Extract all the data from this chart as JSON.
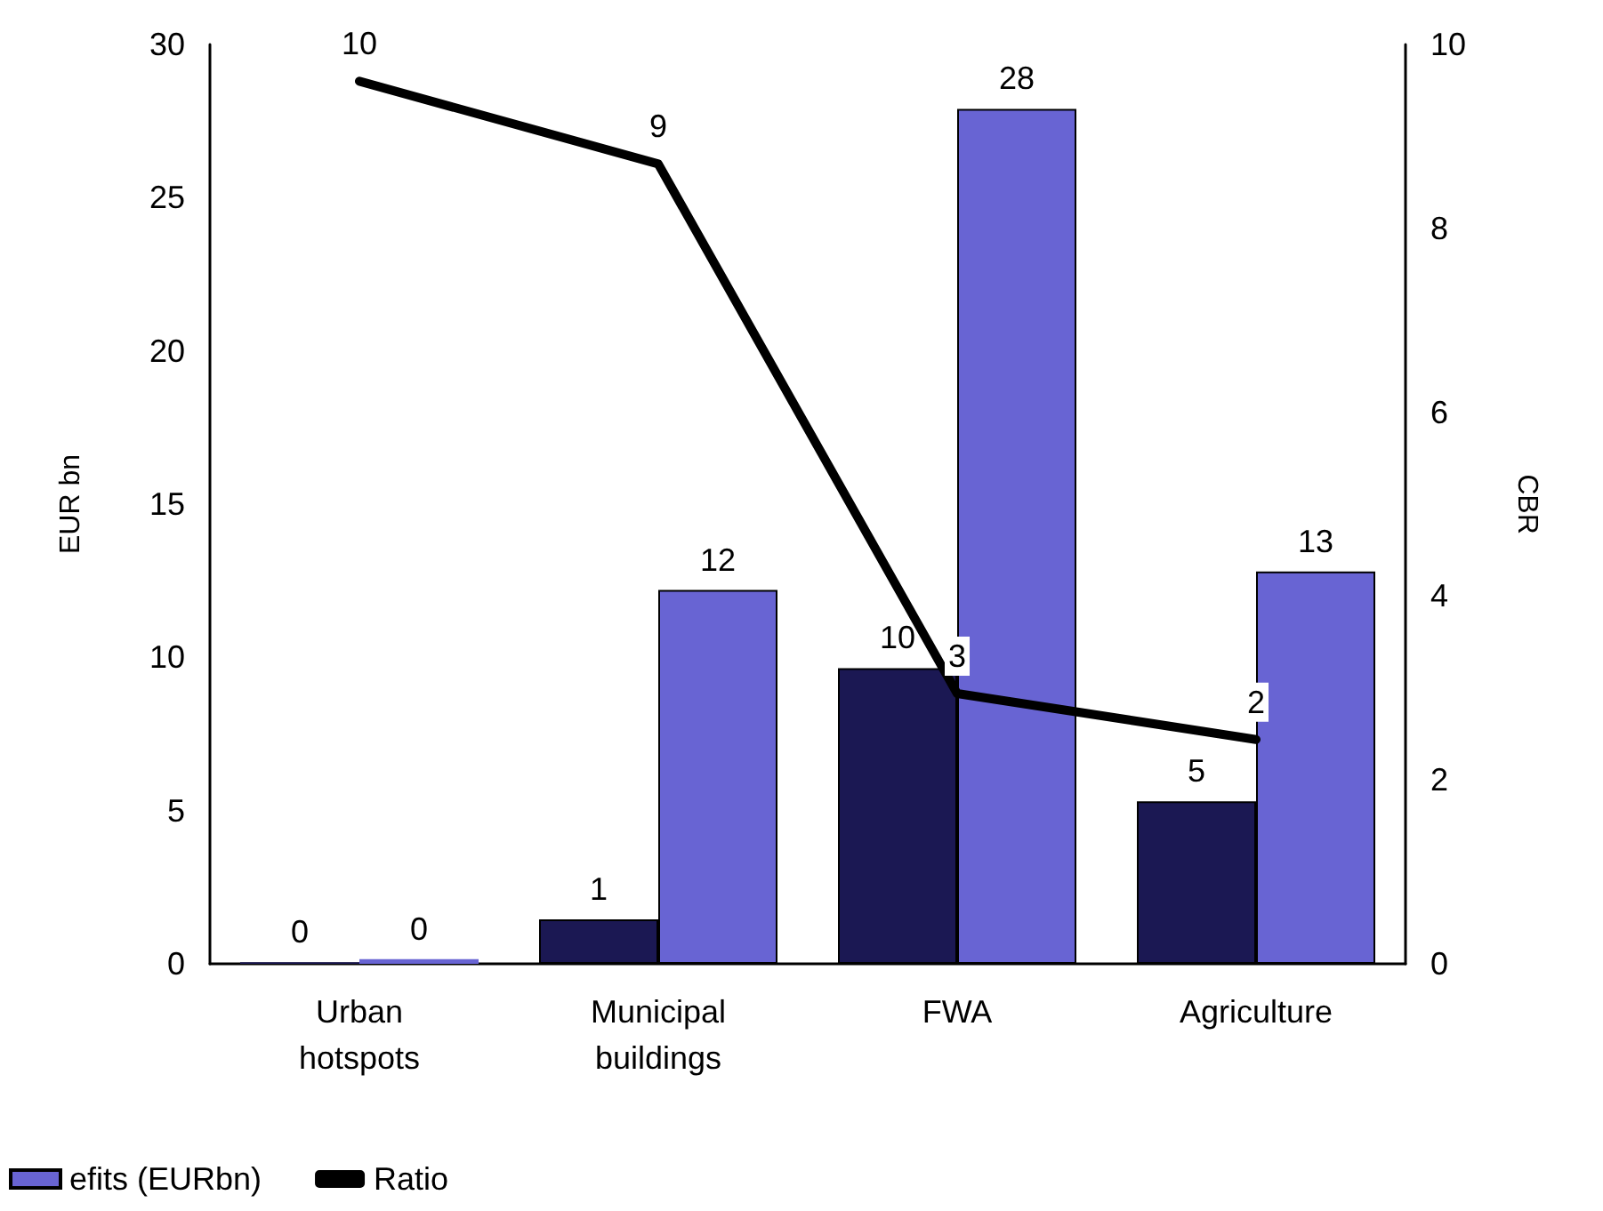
{
  "chart_data": {
    "type": "bar",
    "ylabel": "EUR bn",
    "y2label": "CBR",
    "categories": [
      "Urban\nhotspots",
      "Municipal\nbuildings",
      "FWA",
      "Agriculture"
    ],
    "series": [
      {
        "color": "#1b1853",
        "values": [
          0.05,
          1.45,
          9.65,
          5.3
        ],
        "value_labels": [
          "0",
          "1",
          "10",
          "5"
        ]
      },
      {
        "name": "efits (EURbn)",
        "color": "#6864d3",
        "values": [
          0.15,
          12.2,
          27.9,
          12.8
        ],
        "value_labels": [
          "0",
          "12",
          "28",
          "13"
        ]
      },
      {
        "name": "Ratio",
        "type": "line",
        "axis": "y2",
        "color": "#000000",
        "values": [
          9.6,
          8.7,
          2.94,
          2.44
        ],
        "value_labels": [
          "10",
          "9",
          "3",
          "2"
        ]
      }
    ],
    "ylim": [
      0,
      30
    ],
    "yticks": [
      0,
      5,
      10,
      15,
      20,
      25,
      30
    ],
    "y2lim": [
      0,
      10
    ],
    "y2ticks": [
      0,
      2,
      4,
      6,
      8,
      10
    ],
    "grid": false,
    "legend": "bottom left",
    "marker": "none",
    "line_style": "solid"
  }
}
